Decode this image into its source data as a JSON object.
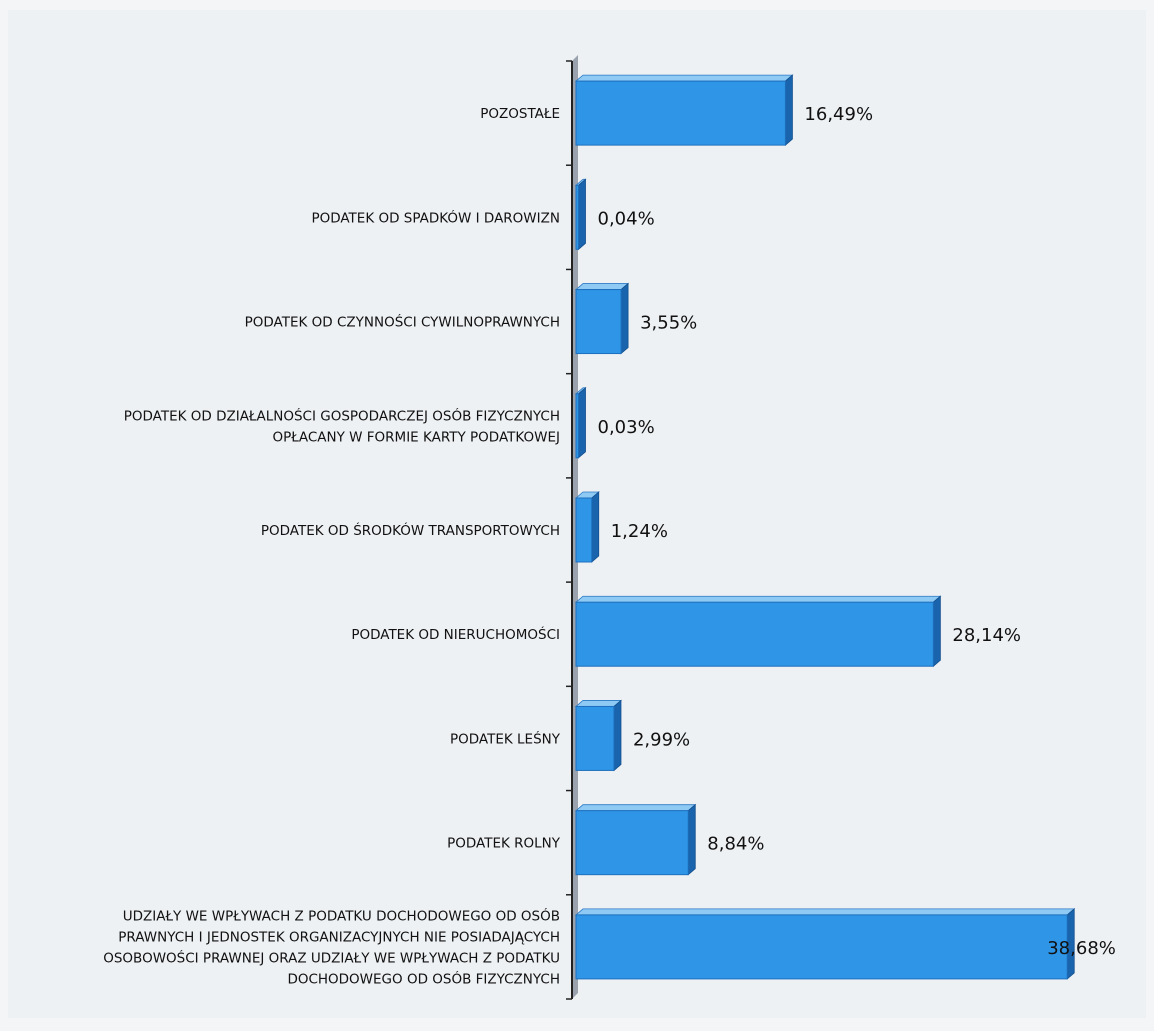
{
  "chart_data": {
    "type": "bar",
    "orientation": "horizontal",
    "value_format": "percent",
    "xlim": [
      0,
      40
    ],
    "grid": false,
    "legend": "none",
    "colors": {
      "bar_front": "#2f95e6",
      "bar_top": "#8fcaf5",
      "bar_side": "#1a64ad",
      "axis": "#222222",
      "text": "#111111"
    },
    "categories": [
      {
        "lines": [
          "POZOSTAŁE"
        ]
      },
      {
        "lines": [
          "PODATEK OD SPADKÓW I DAROWIZN"
        ]
      },
      {
        "lines": [
          "PODATEK OD CZYNNOŚCI CYWILNOPRAWNYCH"
        ]
      },
      {
        "lines": [
          "PODATEK OD DZIAŁALNOŚCI GOSPODARCZEJ OSÓB FIZYCZNYCH",
          "OPŁACANY W FORMIE KARTY PODATKOWEJ"
        ]
      },
      {
        "lines": [
          "PODATEK OD ŚRODKÓW TRANSPORTOWYCH"
        ]
      },
      {
        "lines": [
          "PODATEK OD NIERUCHOMOŚCI"
        ]
      },
      {
        "lines": [
          "PODATEK LEŚNY"
        ]
      },
      {
        "lines": [
          "PODATEK ROLNY"
        ]
      },
      {
        "lines": [
          "UDZIAŁY WE WPŁYWACH Z PODATKU DOCHODOWEGO OD OSÓB",
          "PRAWNYCH I JEDNOSTEK ORGANIZACYJNYCH NIE POSIADAJĄCYCH",
          "OSOBOWOŚCI PRAWNEJ ORAZ UDZIAŁY WE WPŁYWACH Z PODATKU",
          "DOCHODOWEGO OD OSÓB FIZYCZNYCH"
        ]
      }
    ],
    "values": [
      16.49,
      0.04,
      3.55,
      0.03,
      1.24,
      28.14,
      2.99,
      8.84,
      38.68
    ],
    "data_labels": [
      "16,49%",
      "0,04%",
      "3,55%",
      "0,03%",
      "1,24%",
      "28,14%",
      "2,99%",
      "8,84%",
      "38,68%"
    ]
  }
}
